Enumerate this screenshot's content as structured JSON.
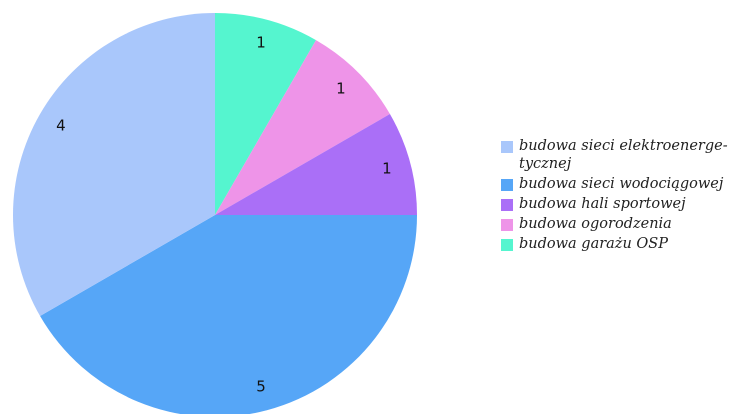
{
  "chart_data": {
    "type": "pie",
    "title": "",
    "start": "top",
    "direction": "clockwise",
    "legend_position": "right",
    "slices": [
      {
        "label": "budowa garażu OSP",
        "value": 1,
        "color": "#55f5cf"
      },
      {
        "label": "budowa ogorodzenia",
        "value": 1,
        "color": "#ee94e8"
      },
      {
        "label": "budowa hali sportowej",
        "value": 1,
        "color": "#aa6ff7"
      },
      {
        "label": "budowa sieci wodociągowej",
        "value": 5,
        "color": "#56a6f7"
      },
      {
        "label": "budowa sieci elektroenerge-tycznej",
        "value": 4,
        "color": "#a9c7fb"
      }
    ]
  },
  "legend": {
    "items": [
      {
        "line1": "budowa sieci elektroenerge-",
        "line2": "tycznej",
        "color": "#a9c7fb"
      },
      {
        "line1": "budowa sieci wodociągowej",
        "line2": "",
        "color": "#56a6f7"
      },
      {
        "line1": "budowa hali sportowej",
        "line2": "",
        "color": "#aa6ff7"
      },
      {
        "line1": "budowa ogorodzenia",
        "line2": "",
        "color": "#ee94e8"
      },
      {
        "line1": "budowa garażu OSP",
        "line2": "",
        "color": "#55f5cf"
      }
    ]
  }
}
